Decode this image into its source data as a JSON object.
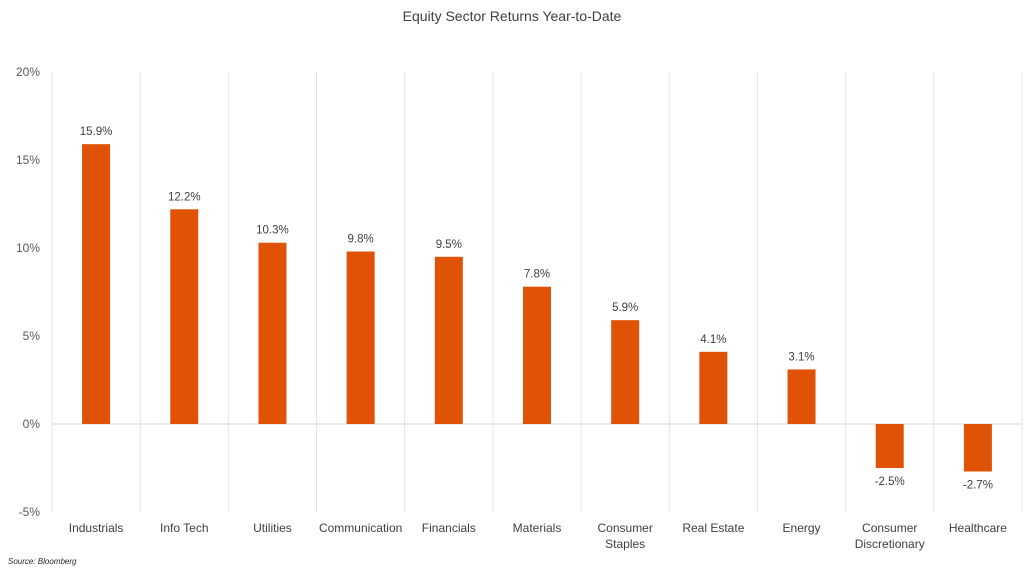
{
  "chart_data": {
    "type": "bar",
    "title": "Equity Sector Returns Year-to-Date",
    "categories": [
      [
        "Industrials"
      ],
      [
        "Info Tech"
      ],
      [
        "Utilities"
      ],
      [
        "Communication"
      ],
      [
        "Financials"
      ],
      [
        "Materials"
      ],
      [
        "Consumer",
        "Staples"
      ],
      [
        "Real Estate"
      ],
      [
        "Energy"
      ],
      [
        "Consumer",
        "Discretionary"
      ],
      [
        "Healthcare"
      ]
    ],
    "values": [
      15.9,
      12.2,
      10.3,
      9.8,
      9.5,
      7.8,
      5.9,
      4.1,
      3.1,
      -2.5,
      -2.7
    ],
    "data_labels": [
      "15.9%",
      "12.2%",
      "10.3%",
      "9.8%",
      "9.5%",
      "7.8%",
      "5.9%",
      "4.1%",
      "3.1%",
      "-2.5%",
      "-2.7%"
    ],
    "yticks": [
      20,
      15,
      10,
      5,
      0,
      -5
    ],
    "ytick_labels": [
      "20%",
      "15%",
      "10%",
      "5%",
      "0%",
      "-5%"
    ],
    "ylim": [
      -5,
      20
    ],
    "bar_color": "#E05206",
    "grid": "vertical category separators",
    "legend": "none"
  },
  "source": "Source: Bloomberg"
}
